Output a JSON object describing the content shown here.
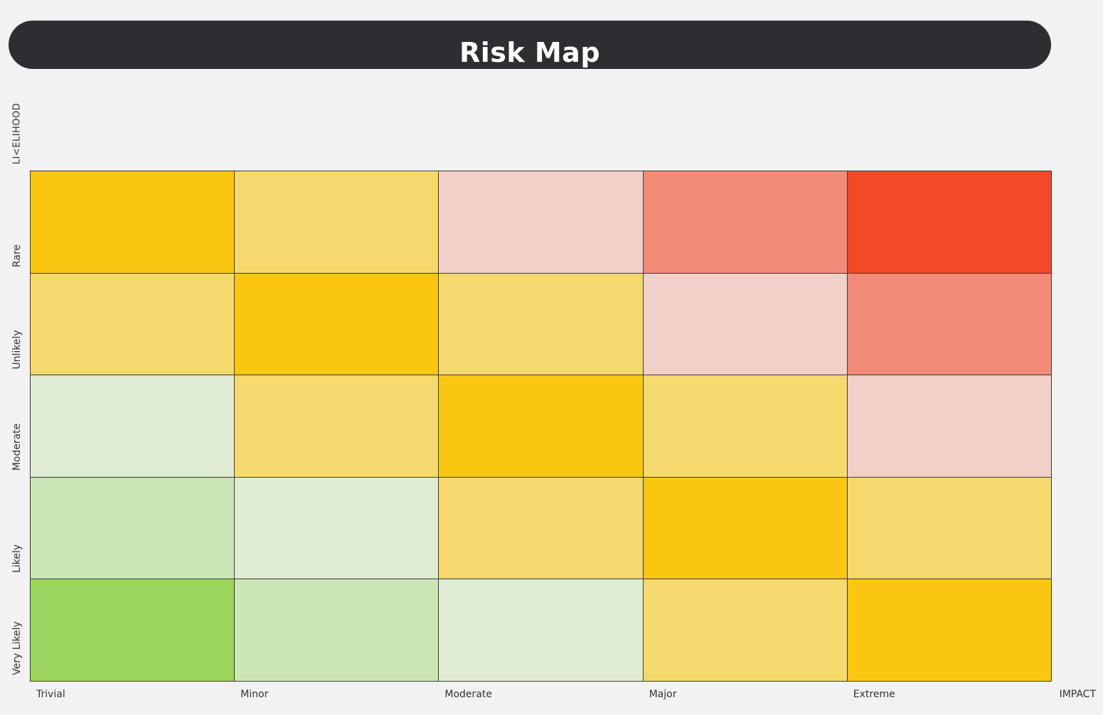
{
  "title": "Risk Map",
  "chart_data": {
    "type": "heatmap",
    "title": "Risk Map",
    "xlabel": "IMPACT",
    "ylabel": "LI<ELIHOOD",
    "columns": [
      "Trivial",
      "Minor",
      "Moderate",
      "Major",
      "Extreme"
    ],
    "rows": [
      "Rare",
      "Unlikely",
      "Moderate",
      "Likely",
      "Very Likely"
    ],
    "palette": {
      "green_strong": "#9bd55d",
      "green_mid": "#cbe5b5",
      "green_light": "#e0ebd4",
      "amber_strong": "#f9c712",
      "amber_light": "#f6d96d",
      "pink_light": "#f1d0c9",
      "salmon": "#f28b78",
      "red": "#f24928"
    },
    "cells": [
      [
        "#f9c712",
        "#f6d96d",
        "#f1d0c9",
        "#f28b78",
        "#f24928"
      ],
      [
        "#f6d96d",
        "#f9c712",
        "#f6d96d",
        "#f1d0c9",
        "#f28b78"
      ],
      [
        "#e0ebd4",
        "#f6d96d",
        "#f9c712",
        "#f6d96d",
        "#f1d0c9"
      ],
      [
        "#cbe5b5",
        "#e0ebd4",
        "#f6d96d",
        "#f9c712",
        "#f6d96d"
      ],
      [
        "#9bd55d",
        "#cbe5b5",
        "#e0ebd4",
        "#f6d96d",
        "#f9c712"
      ]
    ]
  }
}
